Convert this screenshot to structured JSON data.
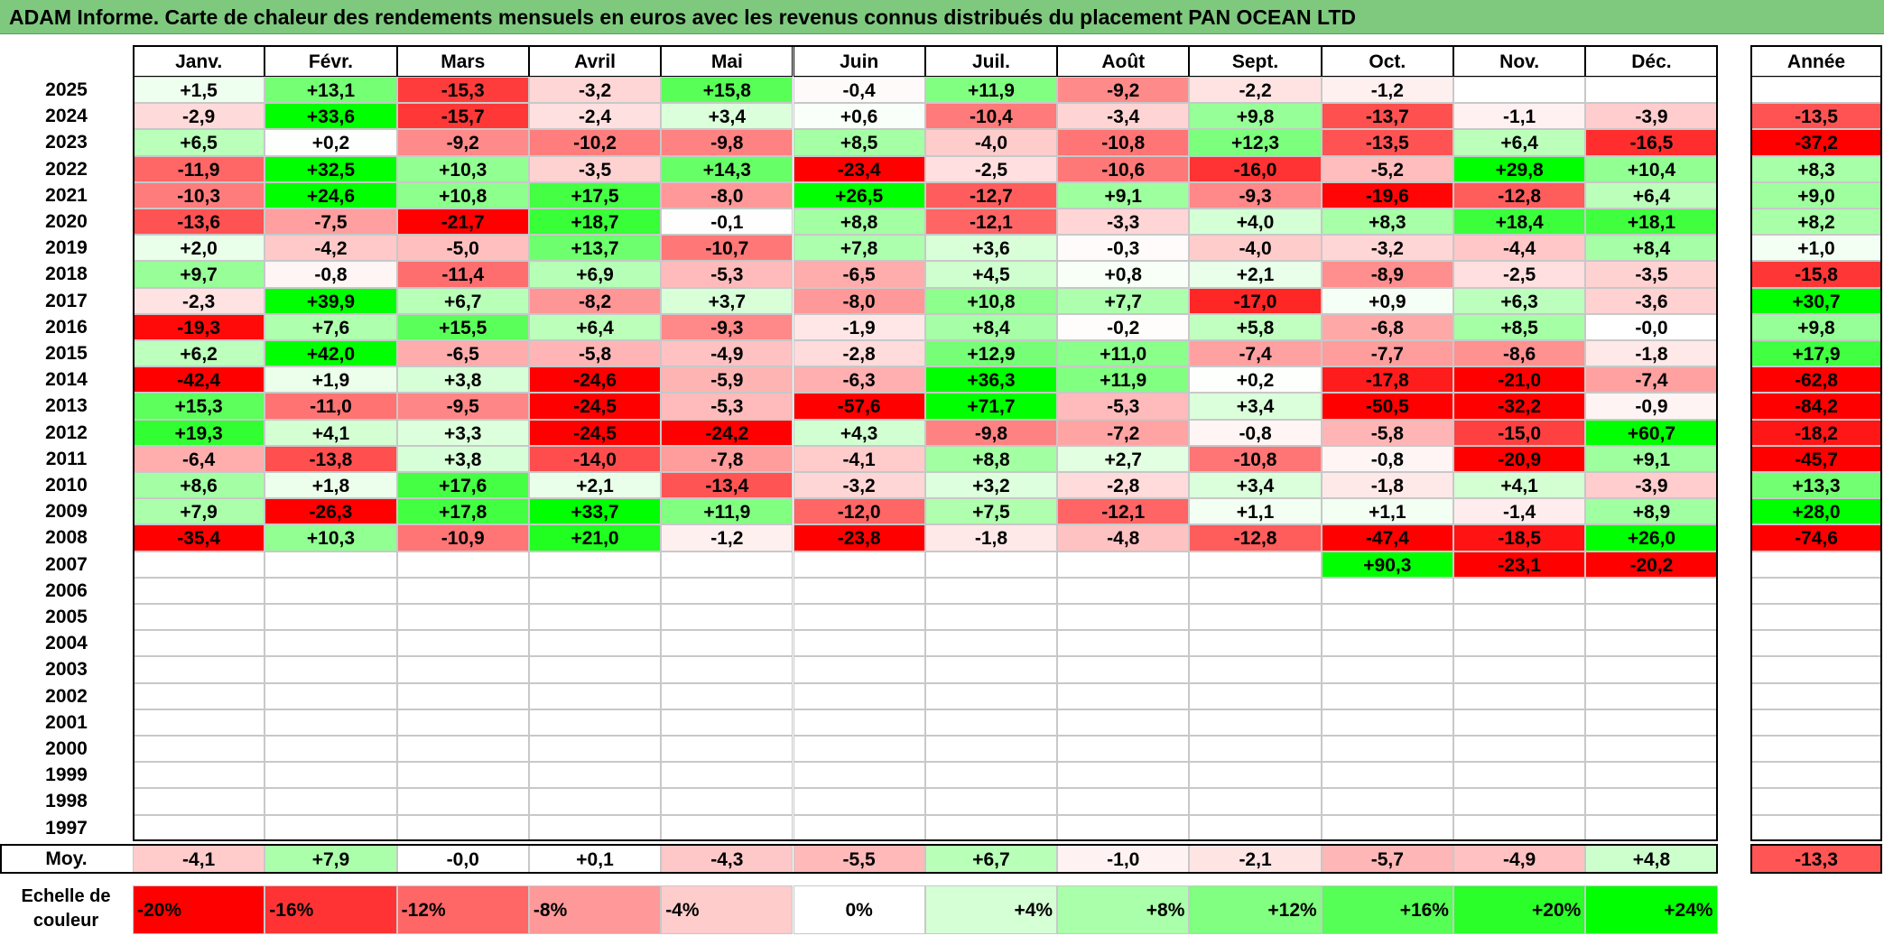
{
  "title": "ADAM Informe. Carte de chaleur des rendements mensuels en euros avec les revenus connus distribués du placement PAN OCEAN LTD",
  "colors": {
    "title_bg": "#7fc97f",
    "strong_red": "#ff0000",
    "strong_green": "#00ff00",
    "neutral": "#ffffff"
  },
  "chart_data": {
    "type": "heatmap",
    "title": "ADAM Informe. Carte de chaleur des rendements mensuels en euros avec les revenus connus distribués du placement PAN OCEAN LTD",
    "months": [
      "Janv.",
      "Févr.",
      "Mars",
      "Avril",
      "Mai",
      "Juin",
      "Juil.",
      "Août",
      "Sept.",
      "Oct.",
      "Nov.",
      "Déc."
    ],
    "year_column_label": "Année",
    "rows": [
      {
        "year": "2025",
        "values": [
          "+1,5",
          "+13,1",
          "-15,3",
          "-3,2",
          "+15,8",
          "-0,4",
          "+11,9",
          "-9,2",
          "-2,2",
          "-1,2",
          "",
          ""
        ],
        "annual": ""
      },
      {
        "year": "2024",
        "values": [
          "-2,9",
          "+33,6",
          "-15,7",
          "-2,4",
          "+3,4",
          "+0,6",
          "-10,4",
          "-3,4",
          "+9,8",
          "-13,7",
          "-1,1",
          "-3,9"
        ],
        "annual": "-13,5"
      },
      {
        "year": "2023",
        "values": [
          "+6,5",
          "+0,2",
          "-9,2",
          "-10,2",
          "-9,8",
          "+8,5",
          "-4,0",
          "-10,8",
          "+12,3",
          "-13,5",
          "+6,4",
          "-16,5"
        ],
        "annual": "-37,2"
      },
      {
        "year": "2022",
        "values": [
          "-11,9",
          "+32,5",
          "+10,3",
          "-3,5",
          "+14,3",
          "-23,4",
          "-2,5",
          "-10,6",
          "-16,0",
          "-5,2",
          "+29,8",
          "+10,4"
        ],
        "annual": "+8,3"
      },
      {
        "year": "2021",
        "values": [
          "-10,3",
          "+24,6",
          "+10,8",
          "+17,5",
          "-8,0",
          "+26,5",
          "-12,7",
          "+9,1",
          "-9,3",
          "-19,6",
          "-12,8",
          "+6,4"
        ],
        "annual": "+9,0"
      },
      {
        "year": "2020",
        "values": [
          "-13,6",
          "-7,5",
          "-21,7",
          "+18,7",
          "-0,1",
          "+8,8",
          "-12,1",
          "-3,3",
          "+4,0",
          "+8,3",
          "+18,4",
          "+18,1"
        ],
        "annual": "+8,2"
      },
      {
        "year": "2019",
        "values": [
          "+2,0",
          "-4,2",
          "-5,0",
          "+13,7",
          "-10,7",
          "+7,8",
          "+3,6",
          "-0,3",
          "-4,0",
          "-3,2",
          "-4,4",
          "+8,4"
        ],
        "annual": "+1,0"
      },
      {
        "year": "2018",
        "values": [
          "+9,7",
          "-0,8",
          "-11,4",
          "+6,9",
          "-5,3",
          "-6,5",
          "+4,5",
          "+0,8",
          "+2,1",
          "-8,9",
          "-2,5",
          "-3,5"
        ],
        "annual": "-15,8"
      },
      {
        "year": "2017",
        "values": [
          "-2,3",
          "+39,9",
          "+6,7",
          "-8,2",
          "+3,7",
          "-8,0",
          "+10,8",
          "+7,7",
          "-17,0",
          "+0,9",
          "+6,3",
          "-3,6"
        ],
        "annual": "+30,7"
      },
      {
        "year": "2016",
        "values": [
          "-19,3",
          "+7,6",
          "+15,5",
          "+6,4",
          "-9,3",
          "-1,9",
          "+8,4",
          "-0,2",
          "+5,8",
          "-6,8",
          "+8,5",
          "-0,0"
        ],
        "annual": "+9,8"
      },
      {
        "year": "2015",
        "values": [
          "+6,2",
          "+42,0",
          "-6,5",
          "-5,8",
          "-4,9",
          "-2,8",
          "+12,9",
          "+11,0",
          "-7,4",
          "-7,7",
          "-8,6",
          "-1,8"
        ],
        "annual": "+17,9"
      },
      {
        "year": "2014",
        "values": [
          "-42,4",
          "+1,9",
          "+3,8",
          "-24,6",
          "-5,9",
          "-6,3",
          "+36,3",
          "+11,9",
          "+0,2",
          "-17,8",
          "-21,0",
          "-7,4"
        ],
        "annual": "-62,8"
      },
      {
        "year": "2013",
        "values": [
          "+15,3",
          "-11,0",
          "-9,5",
          "-24,5",
          "-5,3",
          "-57,6",
          "+71,7",
          "-5,3",
          "+3,4",
          "-50,5",
          "-32,2",
          "-0,9"
        ],
        "annual": "-84,2"
      },
      {
        "year": "2012",
        "values": [
          "+19,3",
          "+4,1",
          "+3,3",
          "-24,5",
          "-24,2",
          "+4,3",
          "-9,8",
          "-7,2",
          "-0,8",
          "-5,8",
          "-15,0",
          "+60,7"
        ],
        "annual": "-18,2"
      },
      {
        "year": "2011",
        "values": [
          "-6,4",
          "-13,8",
          "+3,8",
          "-14,0",
          "-7,8",
          "-4,1",
          "+8,8",
          "+2,7",
          "-10,8",
          "-0,8",
          "-20,9",
          "+9,1"
        ],
        "annual": "-45,7"
      },
      {
        "year": "2010",
        "values": [
          "+8,6",
          "+1,8",
          "+17,6",
          "+2,1",
          "-13,4",
          "-3,2",
          "+3,2",
          "-2,8",
          "+3,4",
          "-1,8",
          "+4,1",
          "-3,9"
        ],
        "annual": "+13,3"
      },
      {
        "year": "2009",
        "values": [
          "+7,9",
          "-26,3",
          "+17,8",
          "+33,7",
          "+11,9",
          "-12,0",
          "+7,5",
          "-12,1",
          "+1,1",
          "+1,1",
          "-1,4",
          "+8,9"
        ],
        "annual": "+28,0"
      },
      {
        "year": "2008",
        "values": [
          "-35,4",
          "+10,3",
          "-10,9",
          "+21,0",
          "-1,2",
          "-23,8",
          "-1,8",
          "-4,8",
          "-12,8",
          "-47,4",
          "-18,5",
          "+26,0"
        ],
        "annual": "-74,6"
      },
      {
        "year": "2007",
        "values": [
          "",
          "",
          "",
          "",
          "",
          "",
          "",
          "",
          "",
          "+90,3",
          "-23,1",
          "-20,2"
        ],
        "annual": ""
      },
      {
        "year": "2006",
        "values": [
          "",
          "",
          "",
          "",
          "",
          "",
          "",
          "",
          "",
          "",
          "",
          ""
        ],
        "annual": ""
      },
      {
        "year": "2005",
        "values": [
          "",
          "",
          "",
          "",
          "",
          "",
          "",
          "",
          "",
          "",
          "",
          ""
        ],
        "annual": ""
      },
      {
        "year": "2004",
        "values": [
          "",
          "",
          "",
          "",
          "",
          "",
          "",
          "",
          "",
          "",
          "",
          ""
        ],
        "annual": ""
      },
      {
        "year": "2003",
        "values": [
          "",
          "",
          "",
          "",
          "",
          "",
          "",
          "",
          "",
          "",
          "",
          ""
        ],
        "annual": ""
      },
      {
        "year": "2002",
        "values": [
          "",
          "",
          "",
          "",
          "",
          "",
          "",
          "",
          "",
          "",
          "",
          ""
        ],
        "annual": ""
      },
      {
        "year": "2001",
        "values": [
          "",
          "",
          "",
          "",
          "",
          "",
          "",
          "",
          "",
          "",
          "",
          ""
        ],
        "annual": ""
      },
      {
        "year": "2000",
        "values": [
          "",
          "",
          "",
          "",
          "",
          "",
          "",
          "",
          "",
          "",
          "",
          ""
        ],
        "annual": ""
      },
      {
        "year": "1999",
        "values": [
          "",
          "",
          "",
          "",
          "",
          "",
          "",
          "",
          "",
          "",
          "",
          ""
        ],
        "annual": ""
      },
      {
        "year": "1998",
        "values": [
          "",
          "",
          "",
          "",
          "",
          "",
          "",
          "",
          "",
          "",
          "",
          ""
        ],
        "annual": ""
      },
      {
        "year": "1997",
        "values": [
          "",
          "",
          "",
          "",
          "",
          "",
          "",
          "",
          "",
          "",
          "",
          ""
        ],
        "annual": ""
      }
    ],
    "average": {
      "label": "Moy.",
      "values": [
        "-4,1",
        "+7,9",
        "-0,0",
        "+0,1",
        "-4,3",
        "-5,5",
        "+6,7",
        "-1,0",
        "-2,1",
        "-5,7",
        "-4,9",
        "+4,8"
      ],
      "annual": "-13,3"
    },
    "color_scale": {
      "label": "Echelle de couleur",
      "stops": [
        "-20%",
        "-16%",
        "-12%",
        "-8%",
        "-4%",
        "0%",
        "+4%",
        "+8%",
        "+12%",
        "+16%",
        "+20%",
        "+24%"
      ],
      "min": -20,
      "max": 24
    }
  }
}
